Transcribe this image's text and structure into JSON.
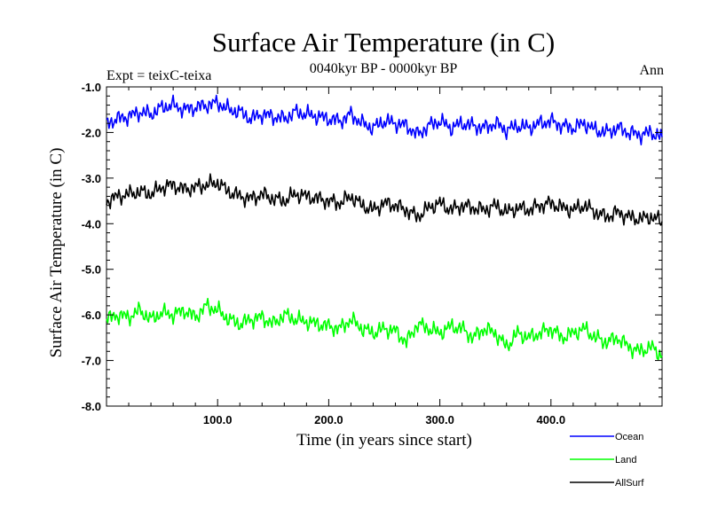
{
  "chart_data": {
    "type": "line",
    "title": "Surface Air Temperature (in C)",
    "subtitle": "0040kyr BP - 0000kyr BP",
    "expt_label": "Expt = teixC-teixa",
    "period_label": "Ann",
    "xlabel": "Time (in years since start)",
    "ylabel": "Surface Air Temperature (in C)",
    "xlim": [
      0,
      500
    ],
    "ylim": [
      -8.0,
      -1.0
    ],
    "x_ticks": [
      100,
      200,
      300,
      400
    ],
    "x_tick_labels": [
      "100.0",
      "200.0",
      "300.0",
      "400.0"
    ],
    "y_ticks": [
      -1,
      -2,
      -3,
      -4,
      -5,
      -6,
      -7,
      -8
    ],
    "y_tick_labels": [
      "-1.0",
      "-2.0",
      "-3.0",
      "-4.0",
      "-5.0",
      "-6.0",
      "-7.0",
      "-8.0"
    ],
    "grid": false,
    "legend_position": "bottom-right",
    "x": [
      0,
      10,
      20,
      30,
      40,
      50,
      60,
      70,
      80,
      90,
      100,
      110,
      120,
      130,
      140,
      150,
      160,
      170,
      180,
      190,
      200,
      210,
      220,
      230,
      240,
      250,
      260,
      270,
      280,
      290,
      300,
      310,
      320,
      330,
      340,
      350,
      360,
      370,
      380,
      390,
      400,
      410,
      420,
      430,
      440,
      450,
      460,
      470,
      480,
      490,
      500
    ],
    "series": [
      {
        "name": "Ocean",
        "color": "#0000ff",
        "values": [
          -1.8,
          -1.7,
          -1.65,
          -1.55,
          -1.6,
          -1.45,
          -1.4,
          -1.5,
          -1.45,
          -1.4,
          -1.35,
          -1.5,
          -1.55,
          -1.7,
          -1.6,
          -1.65,
          -1.7,
          -1.55,
          -1.6,
          -1.65,
          -1.7,
          -1.75,
          -1.6,
          -1.8,
          -1.9,
          -1.75,
          -1.8,
          -1.85,
          -2.05,
          -1.85,
          -1.75,
          -1.9,
          -1.8,
          -1.85,
          -1.9,
          -1.8,
          -1.95,
          -1.85,
          -1.9,
          -1.8,
          -1.75,
          -1.85,
          -1.9,
          -1.8,
          -1.95,
          -2.0,
          -1.9,
          -2.0,
          -2.05,
          -2.0,
          -2.1
        ]
      },
      {
        "name": "Land",
        "color": "#00ff00",
        "values": [
          -6.1,
          -6.0,
          -6.05,
          -5.9,
          -6.1,
          -5.95,
          -6.0,
          -5.9,
          -6.05,
          -5.8,
          -5.9,
          -6.1,
          -6.2,
          -6.1,
          -6.05,
          -6.2,
          -6.0,
          -6.1,
          -6.15,
          -6.2,
          -6.25,
          -6.3,
          -6.1,
          -6.3,
          -6.4,
          -6.3,
          -6.35,
          -6.6,
          -6.2,
          -6.3,
          -6.4,
          -6.25,
          -6.3,
          -6.5,
          -6.3,
          -6.4,
          -6.7,
          -6.4,
          -6.5,
          -6.4,
          -6.3,
          -6.5,
          -6.4,
          -6.3,
          -6.5,
          -6.6,
          -6.5,
          -6.7,
          -6.8,
          -6.7,
          -6.9
        ]
      },
      {
        "name": "AllSurf",
        "color": "#000000",
        "values": [
          -3.5,
          -3.4,
          -3.35,
          -3.3,
          -3.35,
          -3.2,
          -3.15,
          -3.25,
          -3.2,
          -3.15,
          -3.1,
          -3.3,
          -3.4,
          -3.45,
          -3.35,
          -3.45,
          -3.5,
          -3.35,
          -3.4,
          -3.45,
          -3.5,
          -3.55,
          -3.4,
          -3.6,
          -3.7,
          -3.55,
          -3.6,
          -3.7,
          -3.85,
          -3.65,
          -3.55,
          -3.7,
          -3.6,
          -3.65,
          -3.7,
          -3.6,
          -3.75,
          -3.65,
          -3.7,
          -3.6,
          -3.55,
          -3.65,
          -3.7,
          -3.6,
          -3.75,
          -3.85,
          -3.75,
          -3.85,
          -3.9,
          -3.85,
          -3.95
        ]
      }
    ]
  }
}
